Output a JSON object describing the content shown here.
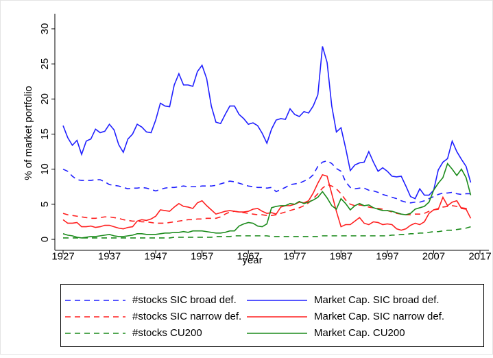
{
  "chart_data": {
    "type": "line",
    "xlabel": "year",
    "ylabel": "% of market portfolio",
    "x": [
      1927,
      1928,
      1929,
      1930,
      1931,
      1932,
      1933,
      1934,
      1935,
      1936,
      1937,
      1938,
      1939,
      1940,
      1941,
      1942,
      1943,
      1944,
      1945,
      1946,
      1947,
      1948,
      1949,
      1950,
      1951,
      1952,
      1953,
      1954,
      1955,
      1956,
      1957,
      1958,
      1959,
      1960,
      1961,
      1962,
      1963,
      1964,
      1965,
      1966,
      1967,
      1968,
      1969,
      1970,
      1971,
      1972,
      1973,
      1974,
      1975,
      1976,
      1977,
      1978,
      1979,
      1980,
      1981,
      1982,
      1983,
      1984,
      1985,
      1986,
      1987,
      1988,
      1989,
      1990,
      1991,
      1992,
      1993,
      1994,
      1995,
      1996,
      1997,
      1998,
      1999,
      2000,
      2001,
      2002,
      2003,
      2004,
      2005,
      2006,
      2007,
      2008,
      2009,
      2010,
      2011,
      2012,
      2013,
      2014,
      2015
    ],
    "xlim": [
      1927,
      2017
    ],
    "xticks": [
      1927,
      1937,
      1947,
      1957,
      1967,
      1977,
      1987,
      1997,
      2007,
      2017
    ],
    "ylim": [
      0,
      30
    ],
    "yticks": [
      0,
      5,
      10,
      15,
      20,
      25,
      30
    ],
    "grid": false,
    "legend": "bottom",
    "series": [
      {
        "name": "#stocks SIC broad def.",
        "color": "#1f1fff",
        "style": "dashed",
        "values": [
          10.0,
          9.7,
          9.0,
          8.5,
          8.4,
          8.4,
          8.4,
          8.5,
          8.5,
          8.2,
          7.8,
          7.7,
          7.6,
          7.4,
          7.2,
          7.3,
          7.3,
          7.4,
          7.3,
          7.1,
          6.9,
          7.1,
          7.3,
          7.4,
          7.4,
          7.5,
          7.6,
          7.5,
          7.5,
          7.5,
          7.6,
          7.6,
          7.6,
          7.7,
          7.9,
          8.1,
          8.3,
          8.2,
          8.0,
          7.8,
          7.6,
          7.5,
          7.4,
          7.4,
          7.3,
          7.4,
          6.8,
          7.1,
          7.4,
          7.8,
          7.9,
          8.0,
          8.3,
          8.6,
          9.2,
          10.4,
          11.0,
          11.2,
          10.8,
          10.1,
          9.7,
          8.2,
          7.4,
          7.2,
          7.3,
          7.3,
          7.0,
          6.9,
          6.7,
          6.4,
          6.2,
          6.0,
          5.8,
          5.5,
          5.3,
          5.2,
          5.3,
          5.3,
          5.5,
          5.8,
          6.1,
          6.4,
          6.6,
          6.6,
          6.7,
          6.5,
          6.4,
          6.5,
          6.5
        ]
      },
      {
        "name": "Market Cap. SIC broad def.",
        "color": "#1f1fff",
        "style": "solid",
        "values": [
          16.2,
          14.5,
          13.4,
          14.1,
          12.1,
          14.0,
          14.3,
          15.7,
          15.2,
          15.4,
          16.4,
          15.6,
          13.5,
          12.4,
          14.3,
          15.0,
          16.4,
          16.0,
          15.3,
          15.2,
          17.0,
          19.4,
          19.0,
          18.9,
          22.0,
          23.6,
          22.0,
          22.0,
          21.8,
          23.9,
          24.8,
          22.9,
          19.0,
          16.7,
          16.5,
          17.8,
          19.0,
          19.0,
          17.8,
          17.2,
          16.4,
          16.6,
          16.2,
          15.1,
          13.7,
          15.7,
          17.0,
          17.2,
          17.1,
          18.6,
          17.8,
          17.5,
          18.2,
          18.0,
          19.0,
          20.6,
          27.5,
          25.2,
          19.0,
          15.3,
          15.9,
          13.0,
          9.8,
          10.6,
          10.9,
          11.0,
          12.5,
          11.0,
          9.7,
          10.2,
          9.7,
          9.0,
          8.9,
          9.0,
          7.6,
          6.1,
          5.8,
          7.2,
          6.3,
          6.3,
          7.0,
          9.9,
          11.0,
          11.5,
          14.0,
          12.5,
          11.4,
          10.4,
          8.1
        ]
      },
      {
        "name": "#stocks SIC narrow def.",
        "color": "#ff1f1f",
        "style": "dashed",
        "values": [
          3.7,
          3.5,
          3.4,
          3.3,
          3.2,
          3.1,
          3.0,
          3.0,
          3.1,
          3.2,
          3.2,
          3.1,
          3.0,
          2.8,
          2.7,
          2.6,
          2.6,
          2.5,
          2.5,
          2.4,
          2.3,
          2.3,
          2.3,
          2.4,
          2.5,
          2.6,
          2.7,
          2.8,
          2.8,
          2.9,
          2.9,
          3.0,
          3.0,
          3.0,
          3.2,
          3.6,
          3.9,
          4.0,
          3.9,
          3.8,
          3.7,
          3.6,
          3.5,
          3.5,
          3.4,
          3.4,
          3.5,
          3.7,
          3.9,
          4.1,
          4.3,
          4.5,
          4.8,
          5.2,
          5.8,
          6.5,
          7.3,
          7.8,
          7.6,
          7.2,
          6.5,
          5.6,
          5.0,
          4.8,
          4.9,
          4.8,
          4.6,
          4.5,
          4.4,
          4.3,
          4.1,
          3.9,
          3.7,
          3.6,
          3.5,
          3.5,
          3.6,
          3.6,
          3.7,
          4.0,
          4.2,
          4.4,
          4.6,
          4.7,
          4.8,
          4.7,
          4.5,
          4.4,
          4.4
        ]
      },
      {
        "name": "Market Cap. SIC narrow def.",
        "color": "#ff1f1f",
        "style": "solid",
        "values": [
          2.8,
          2.3,
          2.3,
          2.4,
          1.8,
          1.8,
          1.9,
          1.7,
          1.8,
          2.0,
          2.0,
          1.8,
          1.6,
          1.5,
          1.7,
          1.8,
          2.6,
          2.8,
          2.7,
          2.9,
          3.3,
          4.2,
          4.1,
          4.0,
          4.6,
          5.1,
          4.7,
          4.6,
          4.4,
          5.2,
          5.5,
          4.8,
          4.2,
          3.6,
          3.8,
          4.0,
          4.1,
          4.0,
          3.9,
          3.9,
          4.0,
          4.3,
          4.4,
          4.0,
          3.7,
          3.8,
          3.6,
          4.6,
          4.8,
          4.8,
          5.0,
          5.3,
          5.2,
          5.5,
          6.6,
          8.0,
          9.2,
          9.0,
          6.5,
          4.0,
          1.8,
          2.1,
          2.1,
          2.6,
          3.1,
          2.3,
          2.1,
          2.5,
          2.4,
          2.1,
          2.2,
          2.1,
          1.5,
          1.3,
          1.5,
          2.0,
          2.3,
          2.1,
          2.5,
          3.7,
          4.2,
          4.3,
          6.0,
          4.8,
          5.3,
          5.5,
          4.4,
          4.3,
          3.0
        ]
      },
      {
        "name": "#stocks CU200",
        "color": "#1a8a1a",
        "style": "dashed",
        "values": [
          0.2,
          0.2,
          0.2,
          0.2,
          0.2,
          0.2,
          0.2,
          0.2,
          0.2,
          0.2,
          0.2,
          0.2,
          0.2,
          0.2,
          0.2,
          0.2,
          0.2,
          0.2,
          0.2,
          0.2,
          0.2,
          0.2,
          0.2,
          0.2,
          0.3,
          0.3,
          0.3,
          0.3,
          0.3,
          0.3,
          0.3,
          0.3,
          0.3,
          0.4,
          0.4,
          0.4,
          0.4,
          0.5,
          0.5,
          0.5,
          0.5,
          0.5,
          0.5,
          0.5,
          0.5,
          0.4,
          0.4,
          0.4,
          0.4,
          0.4,
          0.4,
          0.4,
          0.4,
          0.4,
          0.4,
          0.4,
          0.5,
          0.5,
          0.5,
          0.5,
          0.5,
          0.5,
          0.5,
          0.5,
          0.5,
          0.5,
          0.5,
          0.5,
          0.5,
          0.5,
          0.5,
          0.6,
          0.6,
          0.7,
          0.7,
          0.8,
          0.8,
          0.9,
          0.9,
          1.0,
          1.1,
          1.1,
          1.2,
          1.3,
          1.3,
          1.4,
          1.5,
          1.6,
          1.8
        ]
      },
      {
        "name": "Market Cap. CU200",
        "color": "#1a8a1a",
        "style": "solid",
        "values": [
          0.8,
          0.6,
          0.5,
          0.3,
          0.2,
          0.3,
          0.4,
          0.4,
          0.5,
          0.6,
          0.7,
          0.5,
          0.4,
          0.4,
          0.5,
          0.6,
          0.8,
          0.8,
          0.7,
          0.7,
          0.7,
          0.8,
          0.9,
          0.9,
          1.0,
          1.0,
          1.1,
          1.0,
          1.2,
          1.2,
          1.2,
          1.1,
          1.0,
          0.9,
          0.9,
          1.0,
          1.2,
          1.2,
          1.9,
          2.2,
          2.4,
          2.3,
          1.9,
          1.8,
          2.2,
          4.5,
          4.7,
          4.8,
          4.8,
          5.1,
          5.0,
          5.4,
          5.1,
          5.3,
          5.6,
          6.0,
          6.8,
          5.9,
          4.8,
          4.3,
          5.8,
          5.1,
          4.2,
          4.8,
          5.1,
          4.8,
          4.9,
          4.5,
          4.3,
          4.1,
          4.1,
          4.0,
          3.8,
          3.6,
          3.5,
          3.7,
          4.3,
          4.5,
          4.7,
          5.3,
          7.0,
          8.0,
          8.8,
          10.8,
          10.0,
          9.1,
          10.0,
          8.8,
          6.3
        ]
      }
    ]
  }
}
